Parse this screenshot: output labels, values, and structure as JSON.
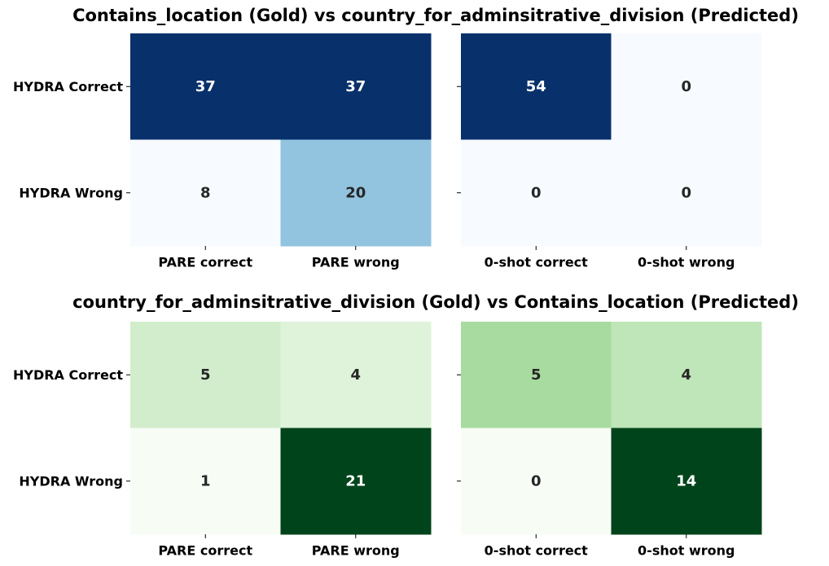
{
  "chart_data": [
    {
      "type": "heatmap",
      "title": "Contains_location (Gold) vs country_for_adminsitrative_division (Predicted)",
      "colormap": "Blues",
      "panels": [
        {
          "rows": [
            "HYDRA Correct",
            "HYDRA Wrong"
          ],
          "columns": [
            "PARE correct",
            "PARE wrong"
          ],
          "values": [
            [
              37,
              37
            ],
            [
              8,
              20
            ]
          ],
          "colors": [
            [
              "#08306b",
              "#08306b"
            ],
            [
              "#f7fbff",
              "#92c3df"
            ]
          ],
          "text_colors": [
            [
              "#ffffff",
              "#ffffff"
            ],
            [
              "#262626",
              "#262626"
            ]
          ]
        },
        {
          "rows": [
            "HYDRA Correct",
            "HYDRA Wrong"
          ],
          "columns": [
            "0-shot correct",
            "0-shot wrong"
          ],
          "values": [
            [
              54,
              0
            ],
            [
              0,
              0
            ]
          ],
          "colors": [
            [
              "#08306b",
              "#f7fbff"
            ],
            [
              "#f7fbff",
              "#f7fbff"
            ]
          ],
          "text_colors": [
            [
              "#ffffff",
              "#262626"
            ],
            [
              "#262626",
              "#262626"
            ]
          ]
        }
      ]
    },
    {
      "type": "heatmap",
      "title": "country_for_adminsitrative_division (Gold) vs Contains_location (Predicted)",
      "colormap": "Greens",
      "panels": [
        {
          "rows": [
            "HYDRA Correct",
            "HYDRA Wrong"
          ],
          "columns": [
            "PARE correct",
            "PARE wrong"
          ],
          "values": [
            [
              5,
              4
            ],
            [
              1,
              21
            ]
          ],
          "colors": [
            [
              "#d2edcc",
              "#dff2da"
            ],
            [
              "#f7fcf5",
              "#00441b"
            ]
          ],
          "text_colors": [
            [
              "#262626",
              "#262626"
            ],
            [
              "#262626",
              "#ffffff"
            ]
          ]
        },
        {
          "rows": [
            "HYDRA Correct",
            "HYDRA Wrong"
          ],
          "columns": [
            "0-shot correct",
            "0-shot wrong"
          ],
          "values": [
            [
              5,
              4
            ],
            [
              0,
              14
            ]
          ],
          "colors": [
            [
              "#a8dba0",
              "#bfe6b8"
            ],
            [
              "#f7fcf5",
              "#00441b"
            ]
          ],
          "text_colors": [
            [
              "#262626",
              "#262626"
            ],
            [
              "#262626",
              "#ffffff"
            ]
          ]
        }
      ]
    }
  ]
}
